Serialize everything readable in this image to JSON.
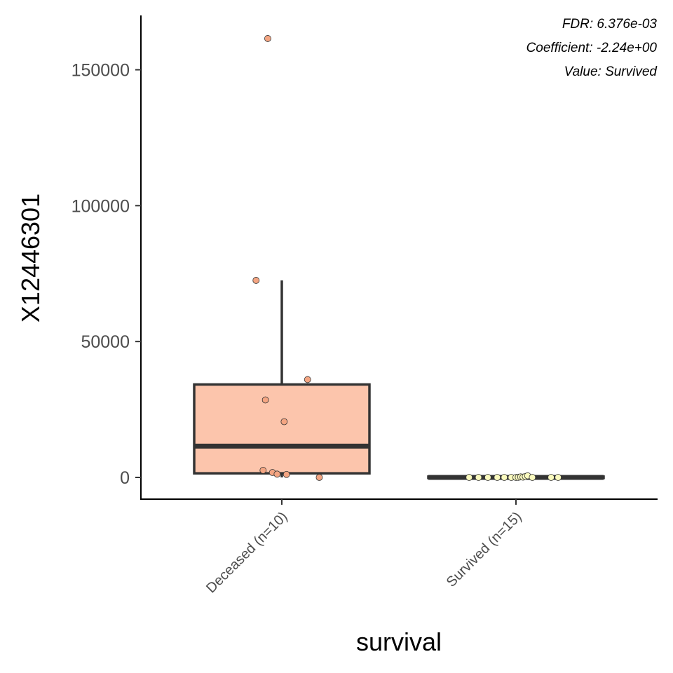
{
  "chart_data": {
    "type": "box",
    "title": "",
    "xlabel": "survival",
    "ylabel": "X12446301",
    "ylim": [
      -8000,
      170000
    ],
    "yticks": [
      0,
      50000,
      100000,
      150000
    ],
    "ytick_labels": [
      "0",
      "50000",
      "100000",
      "150000"
    ],
    "categories": [
      "Deceased (n=10)",
      "Survived (n=15)"
    ],
    "annotations": [
      "FDR: 6.376e-03",
      "Coefficient: -2.24e+00",
      "Value: Survived"
    ],
    "grid": false,
    "legend": "none",
    "boxes": [
      {
        "category": "Deceased (n=10)",
        "whisker_low": 0,
        "q1": 1500,
        "median": 11500,
        "q3": 34200,
        "whisker_high": 72500,
        "fill": "#fcc5ac"
      },
      {
        "category": "Survived (n=15)",
        "whisker_low": 0,
        "q1": 0,
        "median": 0,
        "q3": 300,
        "whisker_high": 600,
        "fill": "#fcc5ac"
      }
    ],
    "points": [
      {
        "category": "Deceased (n=10)",
        "jitter": -0.06,
        "y": 161500,
        "color": "#f4a582"
      },
      {
        "category": "Deceased (n=10)",
        "jitter": -0.11,
        "y": 72500,
        "color": "#f4a582"
      },
      {
        "category": "Deceased (n=10)",
        "jitter": 0.11,
        "y": 36000,
        "color": "#f4a582"
      },
      {
        "category": "Deceased (n=10)",
        "jitter": -0.07,
        "y": 28500,
        "color": "#f4a582"
      },
      {
        "category": "Deceased (n=10)",
        "jitter": 0.01,
        "y": 20500,
        "color": "#f4a582"
      },
      {
        "category": "Deceased (n=10)",
        "jitter": -0.08,
        "y": 2600,
        "color": "#f4a582"
      },
      {
        "category": "Deceased (n=10)",
        "jitter": -0.04,
        "y": 1800,
        "color": "#f4a582"
      },
      {
        "category": "Deceased (n=10)",
        "jitter": -0.02,
        "y": 1200,
        "color": "#f4a582"
      },
      {
        "category": "Deceased (n=10)",
        "jitter": 0.02,
        "y": 1100,
        "color": "#f4a582"
      },
      {
        "category": "Deceased (n=10)",
        "jitter": 0.16,
        "y": 0,
        "color": "#f4a582"
      },
      {
        "category": "Survived (n=15)",
        "jitter": -0.2,
        "y": 0,
        "color": "#fbfbbf"
      },
      {
        "category": "Survived (n=15)",
        "jitter": -0.16,
        "y": 0,
        "color": "#fbfbbf"
      },
      {
        "category": "Survived (n=15)",
        "jitter": -0.12,
        "y": 0,
        "color": "#fbfbbf"
      },
      {
        "category": "Survived (n=15)",
        "jitter": -0.08,
        "y": 0,
        "color": "#fbfbbf"
      },
      {
        "category": "Survived (n=15)",
        "jitter": -0.05,
        "y": 0,
        "color": "#fbfbbf"
      },
      {
        "category": "Survived (n=15)",
        "jitter": -0.02,
        "y": 0,
        "color": "#fbfbbf"
      },
      {
        "category": "Survived (n=15)",
        "jitter": 0.0,
        "y": 0,
        "color": "#fbfbbf"
      },
      {
        "category": "Survived (n=15)",
        "jitter": 0.01,
        "y": 50,
        "color": "#fbfbbf"
      },
      {
        "category": "Survived (n=15)",
        "jitter": 0.02,
        "y": 200,
        "color": "#fbfbbf"
      },
      {
        "category": "Survived (n=15)",
        "jitter": 0.03,
        "y": 100,
        "color": "#fbfbbf"
      },
      {
        "category": "Survived (n=15)",
        "jitter": 0.04,
        "y": 350,
        "color": "#fbfbbf"
      },
      {
        "category": "Survived (n=15)",
        "jitter": 0.05,
        "y": 600,
        "color": "#fbfbbf"
      },
      {
        "category": "Survived (n=15)",
        "jitter": 0.07,
        "y": 0,
        "color": "#fbfbbf"
      },
      {
        "category": "Survived (n=15)",
        "jitter": 0.15,
        "y": 0,
        "color": "#fbfbbf"
      },
      {
        "category": "Survived (n=15)",
        "jitter": 0.18,
        "y": 0,
        "color": "#fbfbbf"
      }
    ]
  }
}
